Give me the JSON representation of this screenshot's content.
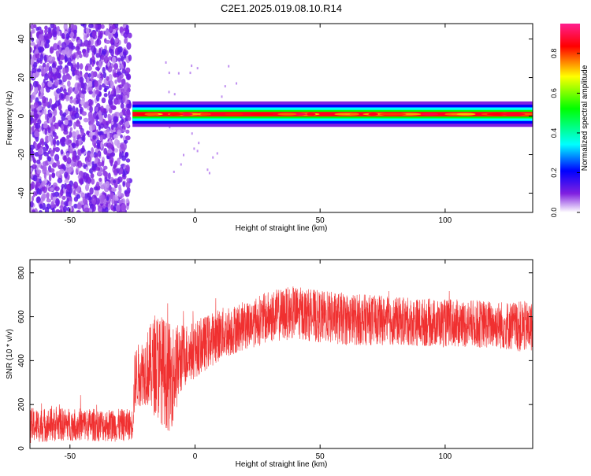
{
  "title": "C2E1.2025.019.08.10.R14",
  "chart_data": [
    {
      "type": "heatmap",
      "xlabel": "Height of straight line (km)",
      "ylabel": "Frequency (Hz)",
      "xlim": [
        -66,
        135
      ],
      "ylim": [
        -50,
        48
      ],
      "x_ticks": [
        -50,
        0,
        50,
        100
      ],
      "x_tick_labels": [
        "-50",
        "0",
        "50",
        "100"
      ],
      "y_ticks": [
        -40,
        -20,
        0,
        20,
        40
      ],
      "y_tick_labels": [
        "-40",
        "-20",
        "0",
        "20",
        "40"
      ],
      "colorbar": {
        "label": "Normalized spectral amplitude",
        "range": [
          0,
          0.95
        ],
        "ticks": [
          0,
          0.2,
          0.4,
          0.6,
          0.8
        ],
        "tick_labels": [
          "0.0",
          "0.2",
          "0.4",
          "0.6",
          "0.8"
        ],
        "colormap": [
          "#ffffff",
          "#8020e0",
          "#0000ff",
          "#00ffff",
          "#00ff00",
          "#ffff00",
          "#ff0000",
          "#ff0080"
        ]
      },
      "features": [
        {
          "name": "scattered noise",
          "x_range": [
            -66,
            -26
          ],
          "freq_range": [
            -50,
            48
          ],
          "amplitude": 0.1
        },
        {
          "name": "signal band",
          "x_range": [
            -25,
            135
          ],
          "freq_center": 1,
          "amplitude": 0.9
        }
      ],
      "grid": false
    },
    {
      "type": "line",
      "xlabel": "Height of straight line (km)",
      "ylabel": "SNR (10 * v/v)",
      "xlim": [
        -66,
        135
      ],
      "ylim": [
        0,
        860
      ],
      "x_ticks": [
        -50,
        0,
        50,
        100
      ],
      "x_tick_labels": [
        "-50",
        "0",
        "50",
        "100"
      ],
      "y_ticks": [
        0,
        200,
        400,
        600,
        800
      ],
      "y_tick_labels": [
        "0",
        "200",
        "400",
        "600",
        "800"
      ],
      "series": [
        {
          "color": "#f03030",
          "x": [
            -66,
            -50,
            -30,
            -25,
            -24,
            -20,
            -15,
            -10,
            -5,
            0,
            10,
            20,
            30,
            40,
            50,
            60,
            80,
            100,
            120,
            135
          ],
          "values": [
            105,
            110,
            105,
            110,
            320,
            360,
            380,
            320,
            420,
            450,
            520,
            560,
            600,
            620,
            600,
            590,
            580,
            570,
            565,
            550
          ],
          "spread": [
            80,
            75,
            75,
            70,
            140,
            160,
            250,
            250,
            150,
            130,
            120,
            110,
            120,
            120,
            120,
            120,
            110,
            110,
            110,
            120
          ]
        }
      ],
      "grid": false
    }
  ]
}
